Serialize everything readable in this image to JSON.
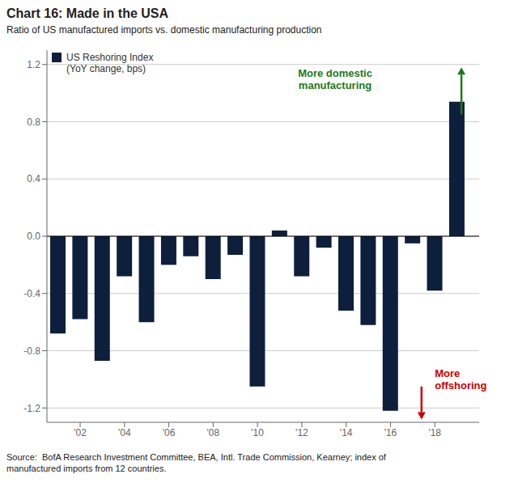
{
  "chart_data": {
    "type": "bar",
    "title": "Chart 16: Made in the USA",
    "subtitle": "Ratio of US manufactured imports vs. domestic manufacturing production",
    "source": "Source:  BofA Research Investment Committee, BEA, Intl. Trade Commission, Kearney; index of\nmanufactured imports from 12 countries.",
    "x": [
      2001,
      2002,
      2003,
      2004,
      2005,
      2006,
      2007,
      2008,
      2009,
      2010,
      2011,
      2012,
      2013,
      2014,
      2015,
      2016,
      2017,
      2018,
      2019
    ],
    "series": [
      {
        "name": "US Reshoring Index\n(YoY change, bps)",
        "color": "#0d1f3c",
        "values": [
          -0.68,
          -0.58,
          -0.87,
          -0.28,
          -0.6,
          -0.2,
          -0.14,
          -0.3,
          -0.13,
          -1.05,
          0.04,
          -0.28,
          -0.08,
          -0.52,
          -0.62,
          -1.22,
          -0.05,
          -0.38,
          0.94
        ]
      }
    ],
    "xlim": [
      2000.5,
      2020.0
    ],
    "xticks": [
      {
        "value": 2002,
        "label": "'02"
      },
      {
        "value": 2004,
        "label": "'04"
      },
      {
        "value": 2006,
        "label": "'06"
      },
      {
        "value": 2008,
        "label": "'08"
      },
      {
        "value": 2010,
        "label": "'10"
      },
      {
        "value": 2012,
        "label": "'12"
      },
      {
        "value": 2014,
        "label": "'14"
      },
      {
        "value": 2016,
        "label": "'16"
      },
      {
        "value": 2018,
        "label": "'18"
      }
    ],
    "ylim": [
      -1.3,
      1.3
    ],
    "yticks": [
      -1.2,
      -0.8,
      -0.4,
      {
        "value": 0.0,
        "label": "0.0"
      },
      0.4,
      0.8,
      1.2
    ],
    "grid": true,
    "legend": "upper left",
    "annotations": [
      {
        "text": "More domestic\nmanufacturing",
        "x": 2013.5,
        "y": 1.1,
        "color": "#1a7a1a",
        "align": "center",
        "arrow": {
          "x": 2019.2,
          "from": 0.85,
          "to": 1.18
        }
      },
      {
        "text": "More\noffshoring",
        "x": 2018.0,
        "y": -1.0,
        "color": "#cc0000",
        "align": "left",
        "arrow": {
          "x": 2017.4,
          "from": -1.05,
          "to": -1.28
        }
      }
    ]
  }
}
